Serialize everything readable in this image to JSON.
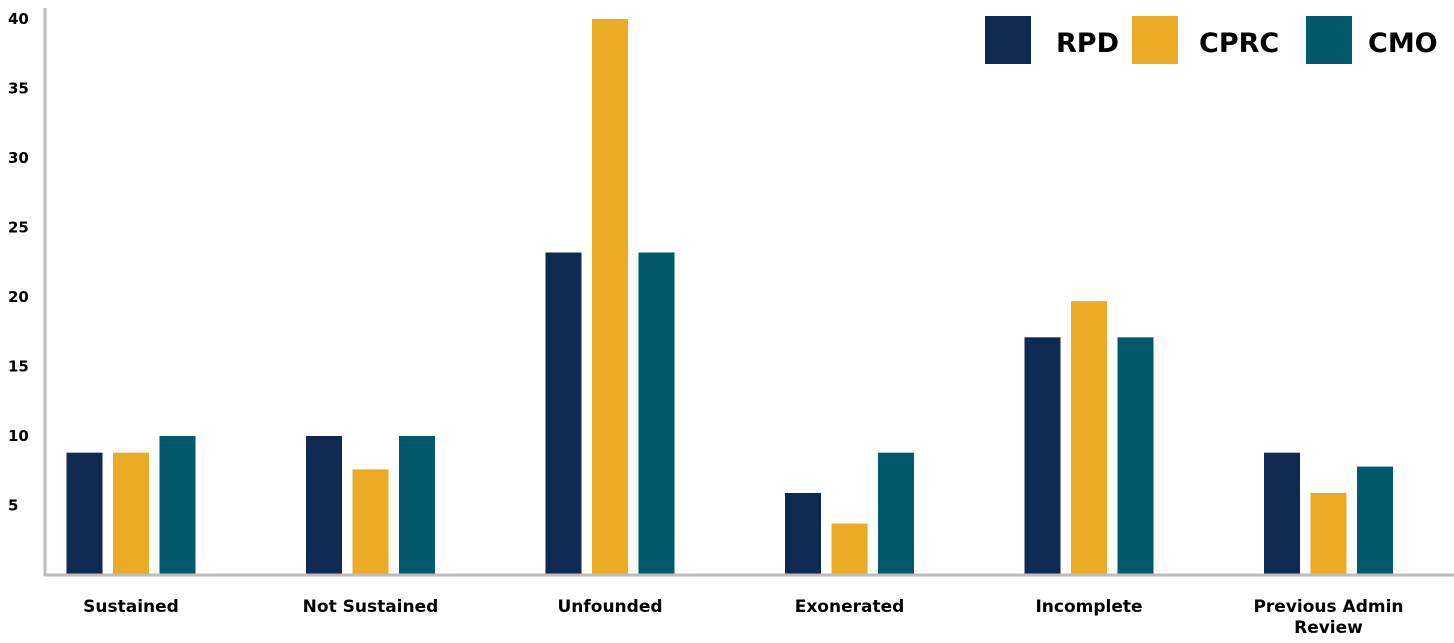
{
  "chart_data": {
    "type": "bar",
    "categories": [
      "Sustained",
      "Not Sustained",
      "Unfounded",
      "Exonerated",
      "Incomplete",
      "Previous Admin Review"
    ],
    "series": [
      {
        "name": "RPD",
        "color": "#0f2a52",
        "values": [
          8.8,
          10,
          23.2,
          5.9,
          17.1,
          8.8
        ]
      },
      {
        "name": "CPRC",
        "color": "#ecab24",
        "values": [
          8.8,
          7.6,
          40,
          3.7,
          19.7,
          5.9
        ]
      },
      {
        "name": "CMO",
        "color": "#01596e",
        "values": [
          10,
          10,
          23.2,
          8.8,
          17.1,
          7.8
        ]
      }
    ],
    "yticks": [
      5,
      10,
      15,
      20,
      25,
      30,
      35,
      40
    ],
    "ylim": [
      0,
      40
    ],
    "grid": false,
    "legend": "top-right",
    "title": "",
    "xlabel": "",
    "ylabel": ""
  }
}
